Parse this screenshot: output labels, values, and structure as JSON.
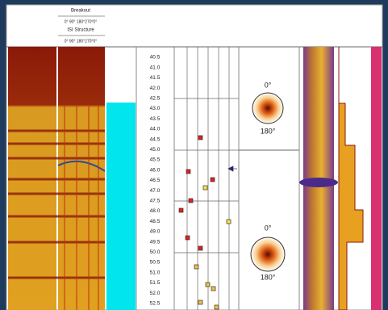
{
  "header": {
    "breakout": "Breakout",
    "breakout_scale": "0° 90° 180°270°0°",
    "structure": "ISI Structure",
    "structure_scale": "0° 90° 180°270°0°"
  },
  "depths": [
    "40.5",
    "41.0",
    "41.5",
    "42.0",
    "42.5",
    "43.0",
    "43.5",
    "44.0",
    "44.5",
    "45.0",
    "45.5",
    "46.0",
    "46.5",
    "47.0",
    "47.5",
    "48.0",
    "48.5",
    "49.0",
    "49.5",
    "50.0",
    "50.5",
    "51.0",
    "51.5",
    "52.0",
    "52.5"
  ],
  "stereonets": [
    {
      "top": "0°",
      "bottom": "180°"
    },
    {
      "top": "0°",
      "bottom": "180°"
    }
  ]
}
